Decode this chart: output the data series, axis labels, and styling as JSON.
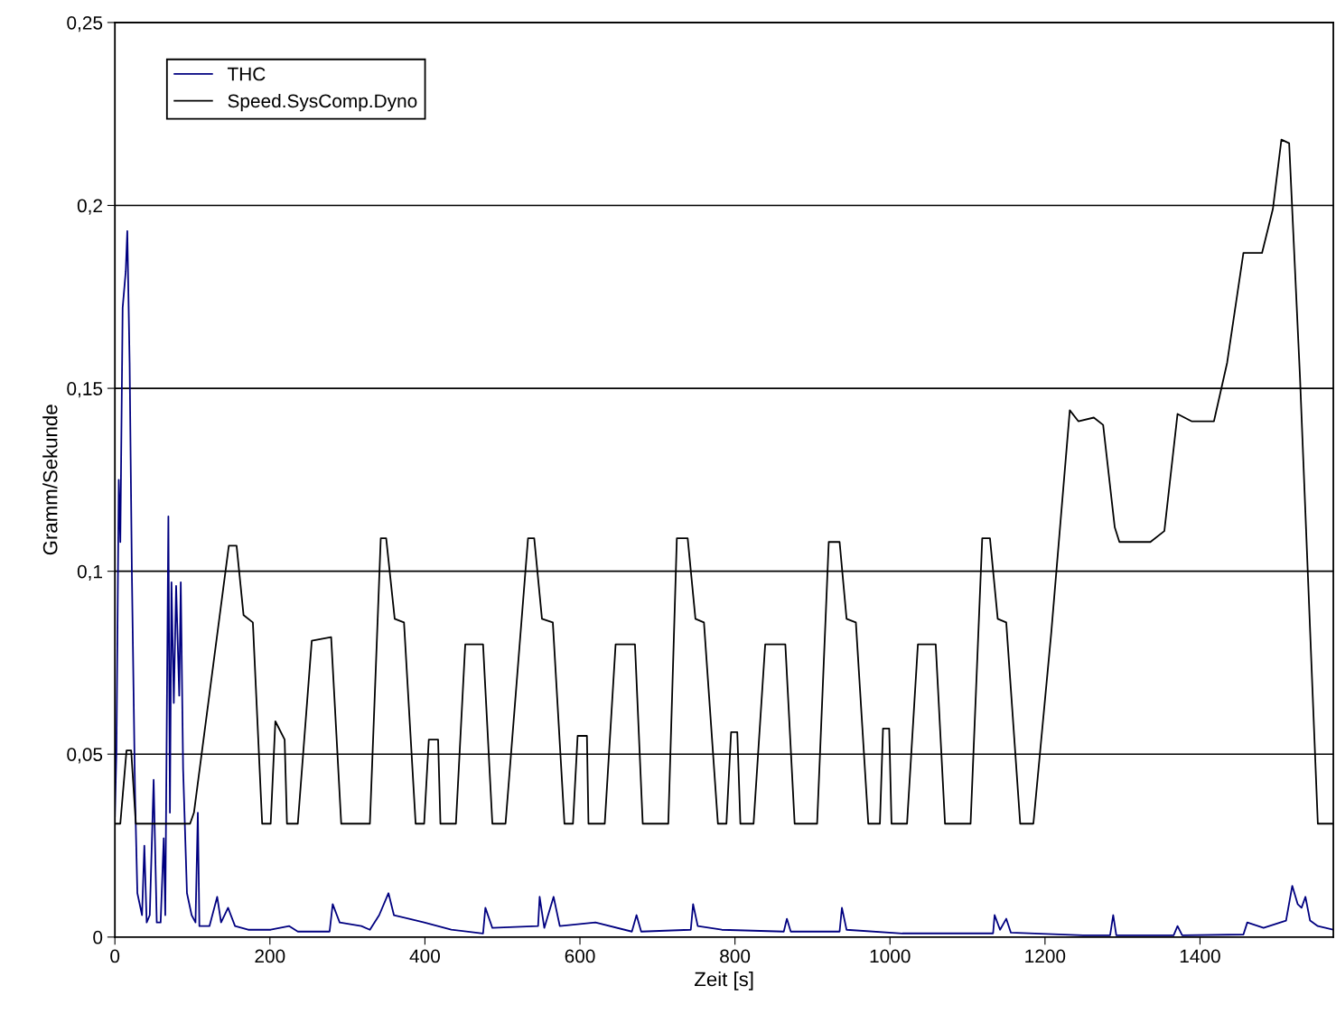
{
  "chart_data": {
    "type": "line",
    "xlabel": "Zeit [s]",
    "ylabel": "Gramm/Sekunde",
    "xlim": [
      0,
      1572
    ],
    "xticks": [
      0,
      200,
      400,
      600,
      800,
      1000,
      1200,
      1400
    ],
    "ylim": [
      0,
      0.25
    ],
    "yticks": [
      0,
      {
        "value": 0.05,
        "label": "0,05"
      },
      {
        "value": 0.1,
        "label": "0,1"
      },
      {
        "value": 0.15,
        "label": "0,15"
      },
      {
        "value": 0.2,
        "label": "0,2"
      },
      {
        "value": 0.25,
        "label": "0,25"
      }
    ],
    "grid": "y",
    "legend": "top left",
    "marker": "none",
    "line_style": "solid",
    "series": [
      {
        "name": "THC",
        "color": "#000080",
        "x": [
          0,
          2,
          5,
          7,
          10,
          14,
          16,
          19,
          22,
          26,
          29,
          35,
          38,
          41,
          45,
          50,
          54,
          59,
          63,
          65,
          69,
          71,
          73,
          76,
          79,
          83,
          85,
          88,
          93,
          99,
          104,
          107,
          109,
          122,
          132,
          137,
          146,
          155,
          172,
          201,
          225,
          236,
          277,
          281,
          290,
          318,
          329,
          341,
          353,
          360,
          399,
          434,
          475,
          478,
          487,
          546,
          548,
          554,
          566,
          574,
          620,
          667,
          673,
          679,
          743,
          746,
          752,
          783,
          863,
          867,
          872,
          935,
          938,
          944,
          1016,
          1133,
          1135,
          1142,
          1150,
          1156,
          1249,
          1284,
          1288,
          1292,
          1366,
          1371,
          1377,
          1456,
          1461,
          1482,
          1511,
          1519,
          1526,
          1531,
          1536,
          1542,
          1552,
          1572
        ],
        "values": [
          0.033,
          0.051,
          0.125,
          0.108,
          0.172,
          0.182,
          0.193,
          0.157,
          0.098,
          0.039,
          0.012,
          0.006,
          0.025,
          0.004,
          0.006,
          0.043,
          0.004,
          0.004,
          0.027,
          0.006,
          0.115,
          0.034,
          0.097,
          0.064,
          0.096,
          0.066,
          0.097,
          0.046,
          0.012,
          0.006,
          0.004,
          0.034,
          0.003,
          0.003,
          0.011,
          0.004,
          0.008,
          0.003,
          0.002,
          0.002,
          0.003,
          0.0015,
          0.0015,
          0.009,
          0.004,
          0.003,
          0.002,
          0.006,
          0.012,
          0.006,
          0.004,
          0.002,
          0.001,
          0.008,
          0.0025,
          0.003,
          0.011,
          0.0025,
          0.011,
          0.003,
          0.004,
          0.0015,
          0.006,
          0.0015,
          0.002,
          0.009,
          0.003,
          0.002,
          0.0015,
          0.005,
          0.0015,
          0.0015,
          0.008,
          0.002,
          0.001,
          0.001,
          0.006,
          0.002,
          0.005,
          0.0012,
          0.0005,
          0.0005,
          0.006,
          0.0005,
          0.0005,
          0.003,
          0.0005,
          0.0007,
          0.004,
          0.0025,
          0.0045,
          0.014,
          0.009,
          0.008,
          0.011,
          0.0045,
          0.003,
          0.002
        ]
      },
      {
        "name": "Speed.SysComp.Dyno",
        "color": "#000000",
        "x": [
          0,
          7,
          15,
          21,
          27,
          97,
          102,
          147,
          157,
          166,
          178,
          190,
          201,
          207,
          219,
          222,
          236,
          254,
          279,
          292,
          329,
          343,
          350,
          361,
          373,
          388,
          399,
          405,
          417,
          420,
          440,
          452,
          475,
          487,
          504,
          533,
          541,
          551,
          565,
          580,
          591,
          597,
          609,
          611,
          632,
          646,
          671,
          681,
          714,
          725,
          739,
          749,
          760,
          778,
          789,
          795,
          803,
          807,
          824,
          839,
          865,
          877,
          906,
          921,
          935,
          944,
          956,
          972,
          987,
          991,
          999,
          1002,
          1022,
          1036,
          1059,
          1071,
          1104,
          1119,
          1129,
          1139,
          1150,
          1168,
          1185,
          1208,
          1232,
          1243,
          1263,
          1275,
          1290,
          1296,
          1336,
          1354,
          1371,
          1389,
          1418,
          1435,
          1456,
          1480,
          1494,
          1505,
          1515,
          1529,
          1552,
          1572
        ],
        "values": [
          0.031,
          0.031,
          0.051,
          0.051,
          0.031,
          0.031,
          0.034,
          0.107,
          0.107,
          0.088,
          0.086,
          0.031,
          0.031,
          0.059,
          0.054,
          0.031,
          0.031,
          0.081,
          0.082,
          0.031,
          0.031,
          0.109,
          0.109,
          0.087,
          0.086,
          0.031,
          0.031,
          0.054,
          0.054,
          0.031,
          0.031,
          0.08,
          0.08,
          0.031,
          0.031,
          0.109,
          0.109,
          0.087,
          0.086,
          0.031,
          0.031,
          0.055,
          0.055,
          0.031,
          0.031,
          0.08,
          0.08,
          0.031,
          0.031,
          0.109,
          0.109,
          0.087,
          0.086,
          0.031,
          0.031,
          0.056,
          0.056,
          0.031,
          0.031,
          0.08,
          0.08,
          0.031,
          0.031,
          0.108,
          0.108,
          0.087,
          0.086,
          0.031,
          0.031,
          0.057,
          0.057,
          0.031,
          0.031,
          0.08,
          0.08,
          0.031,
          0.031,
          0.109,
          0.109,
          0.087,
          0.086,
          0.031,
          0.031,
          0.083,
          0.144,
          0.141,
          0.142,
          0.14,
          0.112,
          0.108,
          0.108,
          0.111,
          0.143,
          0.141,
          0.141,
          0.157,
          0.187,
          0.187,
          0.199,
          0.218,
          0.217,
          0.153,
          0.031,
          0.031
        ]
      }
    ]
  }
}
